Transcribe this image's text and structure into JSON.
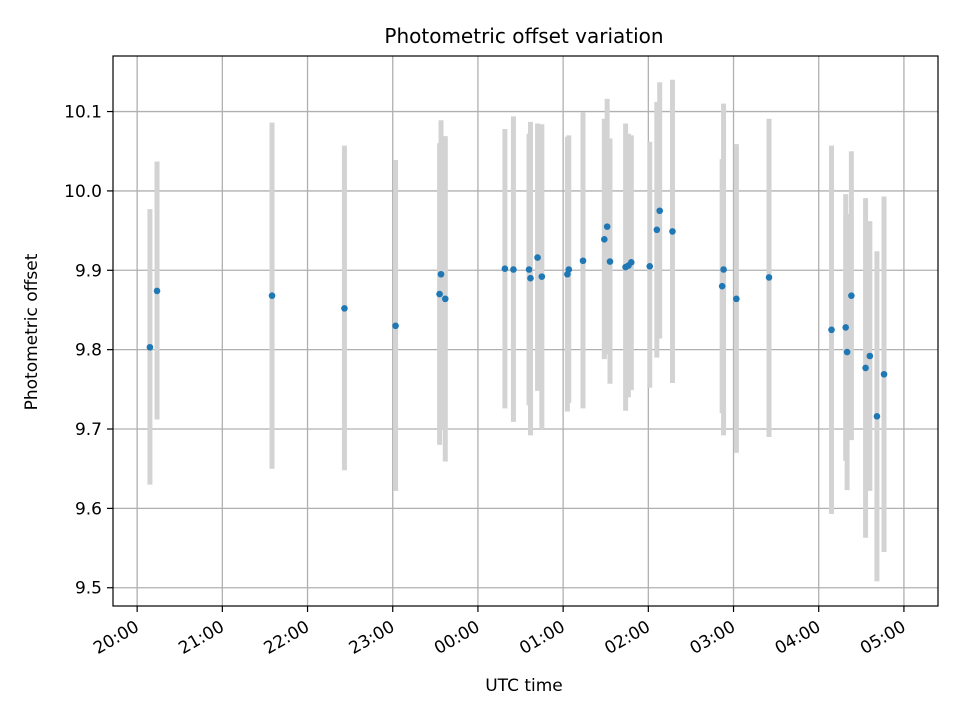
{
  "chart_data": {
    "type": "scatter",
    "title": "Photometric offset variation",
    "xlabel": "UTC time",
    "ylabel": "Photometric offset",
    "grid": true,
    "x_tick_labels": [
      "20:00",
      "21:00",
      "22:00",
      "23:00",
      "00:00",
      "01:00",
      "02:00",
      "03:00",
      "04:00",
      "05:00"
    ],
    "y_tick_labels": [
      "9.5",
      "9.6",
      "9.7",
      "9.8",
      "9.9",
      "10.0",
      "10.1"
    ],
    "xlim": [
      "19:43",
      "05:24"
    ],
    "ylim": [
      9.477,
      10.17
    ],
    "colors": {
      "point": "#1f77b4",
      "errorbar": "#d3d3d3",
      "grid": "#b0b0b0"
    },
    "points": [
      {
        "x": "20:09",
        "y": 9.803,
        "ylow": 9.63,
        "yhigh": 9.977
      },
      {
        "x": "20:14",
        "y": 9.874,
        "ylow": 9.712,
        "yhigh": 10.037
      },
      {
        "x": "21:35",
        "y": 9.868,
        "ylow": 9.65,
        "yhigh": 10.086
      },
      {
        "x": "22:26",
        "y": 9.852,
        "ylow": 9.648,
        "yhigh": 10.057
      },
      {
        "x": "23:02",
        "y": 9.83,
        "ylow": 9.622,
        "yhigh": 10.039
      },
      {
        "x": "23:33",
        "y": 9.87,
        "ylow": 9.68,
        "yhigh": 10.06
      },
      {
        "x": "23:34",
        "y": 9.895,
        "ylow": 9.7,
        "yhigh": 10.089
      },
      {
        "x": "23:37",
        "y": 9.864,
        "ylow": 9.659,
        "yhigh": 10.069
      },
      {
        "x": "00:19",
        "y": 9.902,
        "ylow": 9.726,
        "yhigh": 10.078
      },
      {
        "x": "00:25",
        "y": 9.901,
        "ylow": 9.709,
        "yhigh": 10.094
      },
      {
        "x": "00:36",
        "y": 9.901,
        "ylow": 9.73,
        "yhigh": 10.072
      },
      {
        "x": "00:37",
        "y": 9.89,
        "ylow": 9.692,
        "yhigh": 10.087
      },
      {
        "x": "00:42",
        "y": 9.916,
        "ylow": 9.748,
        "yhigh": 10.085
      },
      {
        "x": "00:45",
        "y": 9.892,
        "ylow": 9.7,
        "yhigh": 10.084
      },
      {
        "x": "01:03",
        "y": 9.895,
        "ylow": 9.722,
        "yhigh": 10.068
      },
      {
        "x": "01:04",
        "y": 9.901,
        "ylow": 9.733,
        "yhigh": 10.07
      },
      {
        "x": "01:14",
        "y": 9.912,
        "ylow": 9.726,
        "yhigh": 10.099
      },
      {
        "x": "01:29",
        "y": 9.939,
        "ylow": 9.788,
        "yhigh": 10.091
      },
      {
        "x": "01:31",
        "y": 9.955,
        "ylow": 9.794,
        "yhigh": 10.116
      },
      {
        "x": "01:33",
        "y": 9.911,
        "ylow": 9.757,
        "yhigh": 10.066
      },
      {
        "x": "01:44",
        "y": 9.904,
        "ylow": 9.723,
        "yhigh": 10.085
      },
      {
        "x": "01:46",
        "y": 9.906,
        "ylow": 9.74,
        "yhigh": 10.072
      },
      {
        "x": "01:48",
        "y": 9.91,
        "ylow": 9.749,
        "yhigh": 10.07
      },
      {
        "x": "02:01",
        "y": 9.905,
        "ylow": 9.752,
        "yhigh": 10.062
      },
      {
        "x": "02:06",
        "y": 9.951,
        "ylow": 9.79,
        "yhigh": 10.112
      },
      {
        "x": "02:08",
        "y": 9.975,
        "ylow": 9.814,
        "yhigh": 10.137
      },
      {
        "x": "02:17",
        "y": 9.949,
        "ylow": 9.758,
        "yhigh": 10.14
      },
      {
        "x": "02:52",
        "y": 9.88,
        "ylow": 9.72,
        "yhigh": 10.04
      },
      {
        "x": "02:53",
        "y": 9.901,
        "ylow": 9.692,
        "yhigh": 10.11
      },
      {
        "x": "03:02",
        "y": 9.864,
        "ylow": 9.67,
        "yhigh": 10.059
      },
      {
        "x": "03:25",
        "y": 9.891,
        "ylow": 9.69,
        "yhigh": 10.091
      },
      {
        "x": "04:09",
        "y": 9.825,
        "ylow": 9.593,
        "yhigh": 10.057
      },
      {
        "x": "04:19",
        "y": 9.828,
        "ylow": 9.66,
        "yhigh": 9.996
      },
      {
        "x": "04:20",
        "y": 9.797,
        "ylow": 9.623,
        "yhigh": 9.971
      },
      {
        "x": "04:23",
        "y": 9.868,
        "ylow": 9.686,
        "yhigh": 10.05
      },
      {
        "x": "04:33",
        "y": 9.777,
        "ylow": 9.563,
        "yhigh": 9.991
      },
      {
        "x": "04:36",
        "y": 9.792,
        "ylow": 9.622,
        "yhigh": 9.962
      },
      {
        "x": "04:41",
        "y": 9.716,
        "ylow": 9.508,
        "yhigh": 9.924
      },
      {
        "x": "04:46",
        "y": 9.769,
        "ylow": 9.545,
        "yhigh": 9.993
      }
    ]
  }
}
